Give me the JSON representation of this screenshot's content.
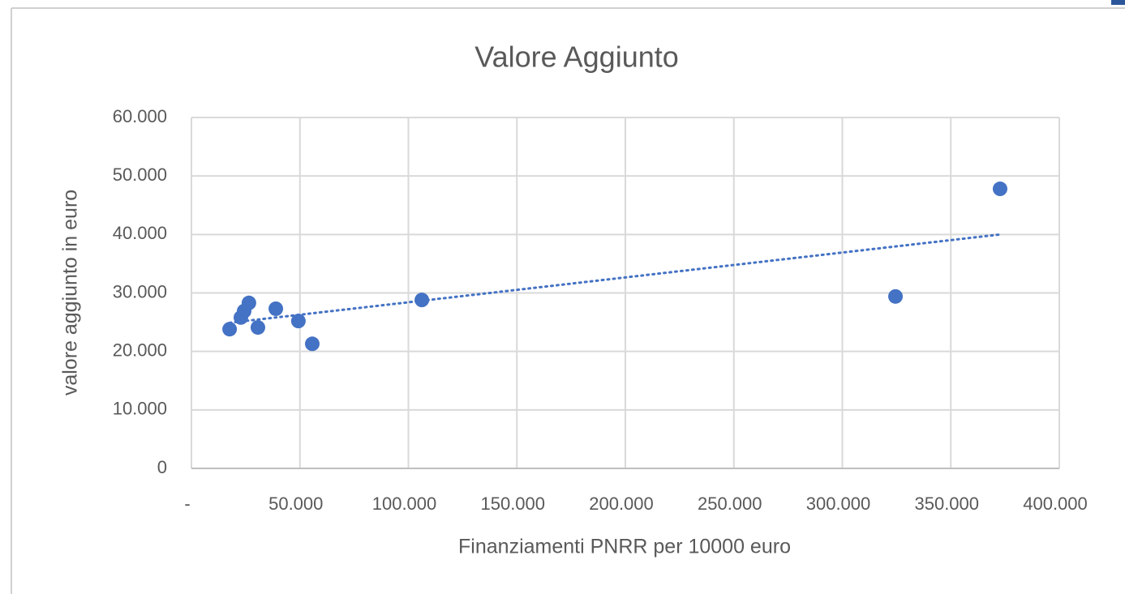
{
  "chart_data": {
    "type": "scatter",
    "title": "Valore Aggiunto",
    "x_label": "Finanziamenti PNRR per 10000 euro",
    "y_label": "valore aggiunto in euro",
    "series": [
      {
        "color": "#4472c4",
        "x": [
          17600,
          22800,
          24300,
          26500,
          30650,
          38900,
          49300,
          55700,
          106200,
          324500,
          372700
        ],
        "values": [
          23800,
          25800,
          26900,
          28300,
          24100,
          27300,
          25200,
          21300,
          28800,
          29400,
          47800
        ]
      }
    ],
    "trendline": {
      "x": [
        17600,
        372700
      ],
      "values": [
        24900,
        40000
      ],
      "color": "#4472c4"
    },
    "xlim": [
      0,
      400000
    ],
    "xticks": [
      {
        "value": 0,
        "label": "-"
      },
      {
        "value": 50000,
        "label": "50.000"
      },
      {
        "value": 100000,
        "label": "100.000"
      },
      {
        "value": 150000,
        "label": "150.000"
      },
      {
        "value": 200000,
        "label": "200.000"
      },
      {
        "value": 250000,
        "label": "250.000"
      },
      {
        "value": 300000,
        "label": "300.000"
      },
      {
        "value": 350000,
        "label": "350.000"
      },
      {
        "value": 400000,
        "label": "400.000"
      }
    ],
    "ylim": [
      0,
      60000
    ],
    "yticks": [
      0,
      {
        "value": 10000,
        "label": "10.000"
      },
      {
        "value": 20000,
        "label": "20.000"
      },
      {
        "value": 30000,
        "label": "30.000"
      },
      {
        "value": 40000,
        "label": "40.000"
      },
      {
        "value": 50000,
        "label": "50.000"
      },
      {
        "value": 60000,
        "label": "60.000"
      }
    ],
    "grid": true
  }
}
